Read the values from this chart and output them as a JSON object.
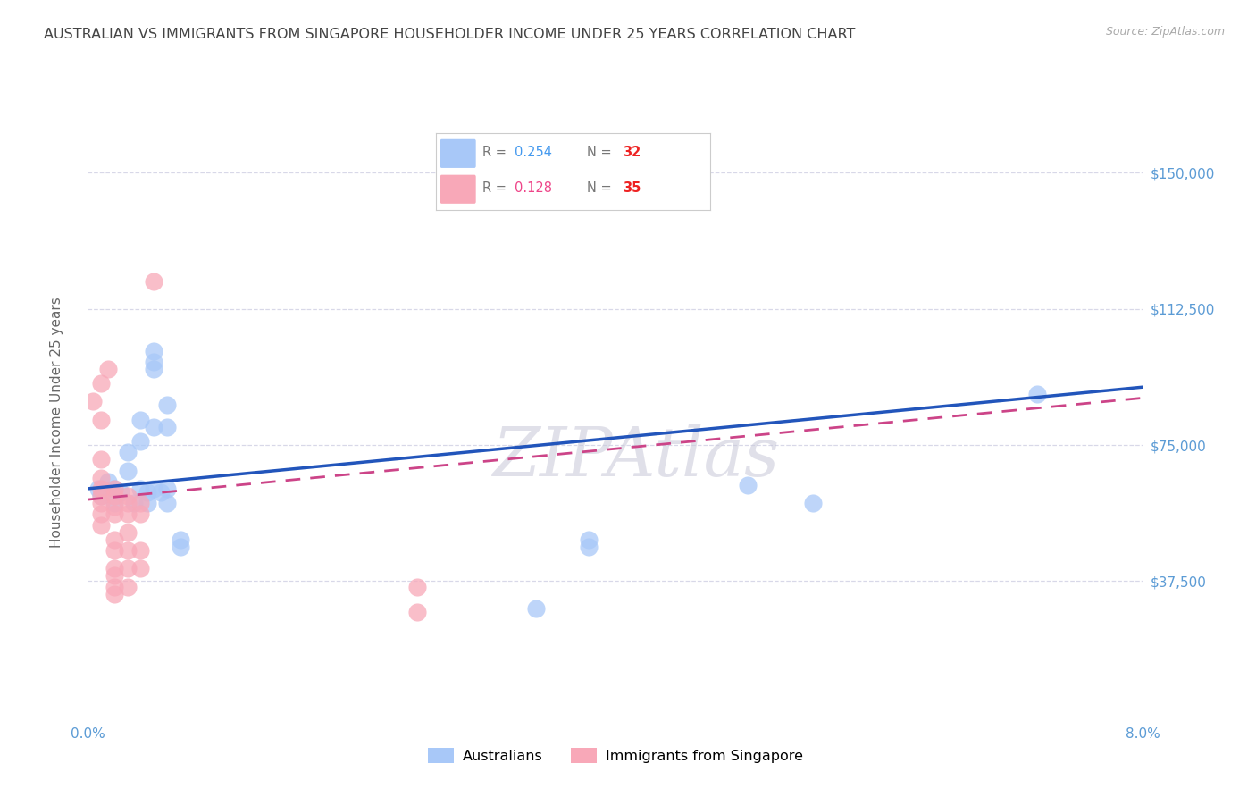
{
  "title": "AUSTRALIAN VS IMMIGRANTS FROM SINGAPORE HOUSEHOLDER INCOME UNDER 25 YEARS CORRELATION CHART",
  "source": "Source: ZipAtlas.com",
  "ylabel": "Householder Income Under 25 years",
  "xlim": [
    0.0,
    0.08
  ],
  "ylim": [
    0,
    162500
  ],
  "yticks": [
    0,
    37500,
    75000,
    112500,
    150000
  ],
  "ytick_labels": [
    "",
    "$37,500",
    "$75,000",
    "$112,500",
    "$150,000"
  ],
  "xtick_positions": [
    0.0,
    0.08
  ],
  "xtick_labels": [
    "0.0%",
    "8.0%"
  ],
  "blue_color": "#a8c8f8",
  "pink_color": "#f8a8b8",
  "blue_line_color": "#2255bb",
  "pink_line_color": "#cc4488",
  "legend_r1": "0.254",
  "legend_n1": "32",
  "legend_r2": "0.128",
  "legend_n2": "35",
  "r_value_color": "#4499ee",
  "n_value_color": "#ee2222",
  "r2_value_color": "#ee4488",
  "watermark": "ZIPAtlas",
  "blue_points_x": [
    0.0008,
    0.001,
    0.0015,
    0.002,
    0.002,
    0.003,
    0.003,
    0.0025,
    0.0035,
    0.004,
    0.004,
    0.004,
    0.0045,
    0.0045,
    0.005,
    0.005,
    0.005,
    0.005,
    0.005,
    0.0055,
    0.006,
    0.006,
    0.006,
    0.006,
    0.007,
    0.007,
    0.034,
    0.038,
    0.038,
    0.05,
    0.055,
    0.072
  ],
  "blue_points_y": [
    63000,
    61000,
    65000,
    63000,
    59000,
    73000,
    68000,
    62000,
    59000,
    82000,
    76000,
    63000,
    62000,
    59000,
    101000,
    98000,
    96000,
    80000,
    63000,
    62000,
    86000,
    80000,
    63000,
    59000,
    49000,
    47000,
    30000,
    49000,
    47000,
    64000,
    59000,
    89000
  ],
  "pink_points_x": [
    0.0004,
    0.001,
    0.001,
    0.001,
    0.001,
    0.001,
    0.001,
    0.001,
    0.001,
    0.001,
    0.0015,
    0.002,
    0.002,
    0.002,
    0.002,
    0.002,
    0.002,
    0.002,
    0.002,
    0.002,
    0.002,
    0.003,
    0.003,
    0.003,
    0.003,
    0.003,
    0.003,
    0.003,
    0.004,
    0.004,
    0.004,
    0.004,
    0.005,
    0.025,
    0.025
  ],
  "pink_points_y": [
    87000,
    92000,
    82000,
    71000,
    66000,
    63000,
    61000,
    59000,
    56000,
    53000,
    96000,
    63000,
    61000,
    58000,
    56000,
    49000,
    46000,
    41000,
    39000,
    36000,
    34000,
    61000,
    59000,
    56000,
    51000,
    46000,
    41000,
    36000,
    59000,
    56000,
    46000,
    41000,
    120000,
    36000,
    29000
  ],
  "blue_line_x": [
    0.0,
    0.08
  ],
  "blue_line_y": [
    63000,
    91000
  ],
  "pink_line_x": [
    0.0,
    0.08
  ],
  "pink_line_y": [
    60000,
    88000
  ],
  "background_color": "#ffffff",
  "grid_color": "#d8d8e8",
  "title_color": "#444444",
  "axis_tick_color": "#5b9bd5",
  "ylabel_color": "#666666",
  "title_fontsize": 11.5,
  "source_fontsize": 9,
  "tick_fontsize": 11,
  "ylabel_fontsize": 11
}
